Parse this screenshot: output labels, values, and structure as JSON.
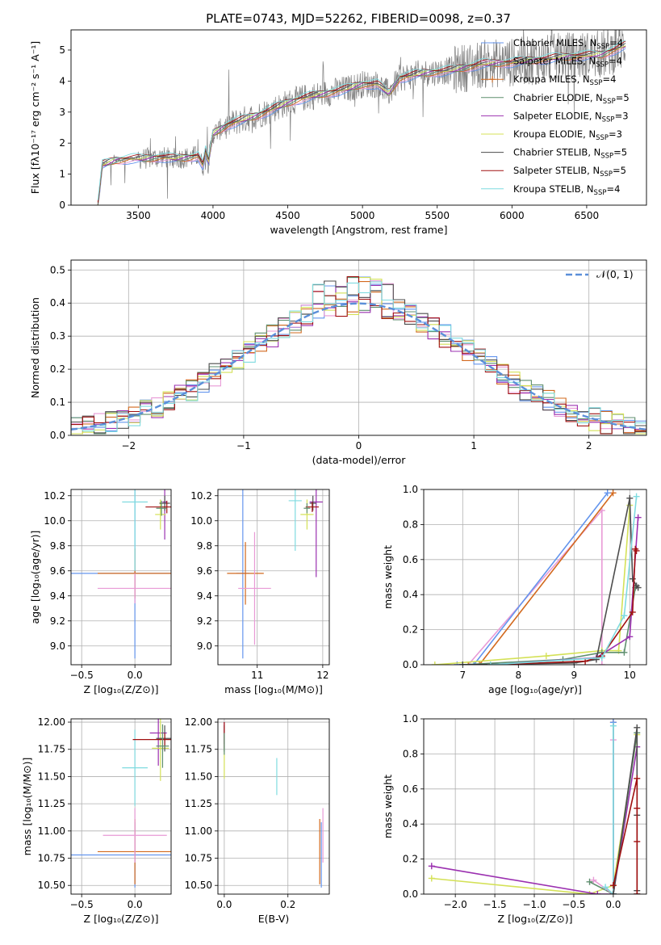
{
  "figure_title": "PLATE=0743, MJD=52262, FIBERID=0098, z=0.37",
  "palette": {
    "Chabrier MILES": "#6495ed",
    "Salpeter MILES": "#e89ad6",
    "Kroupa MILES": "#d2691e",
    "Chabrier ELODIE": "#5f8f6f",
    "Salpeter ELODIE": "#9b30b0",
    "Kroupa ELODIE": "#d4e157",
    "Chabrier STELIB": "#4d4d4d",
    "Salpeter STELIB": "#a01010",
    "Kroupa STELIB": "#7fdbe0",
    "data": "#808080",
    "normal": "#5b8fd9"
  },
  "chart_data": [
    {
      "id": "spectrum",
      "type": "line",
      "xlabel": "wavelength [Angstrom, rest frame]",
      "ylabel": "Flux [fλ10⁻¹⁷ erg cm⁻² s⁻¹ A⁻¹]",
      "xlim": [
        3050,
        6900
      ],
      "ylim": [
        0,
        5.65
      ],
      "xticks": [
        3500,
        4000,
        4500,
        5000,
        5500,
        6000,
        6500
      ],
      "yticks": [
        0,
        1,
        2,
        3,
        4,
        5
      ],
      "grid": false,
      "legend_position": "top-right",
      "legend": [
        {
          "name": "Chabrier MILES",
          "nssp": "4"
        },
        {
          "name": "Salpeter MILES",
          "nssp": "4"
        },
        {
          "name": "Kroupa MILES",
          "nssp": "4"
        },
        {
          "name": "Chabrier ELODIE",
          "nssp": "5"
        },
        {
          "name": "Salpeter ELODIE",
          "nssp": "3"
        },
        {
          "name": "Kroupa ELODIE",
          "nssp": "3"
        },
        {
          "name": "Chabrier STELIB",
          "nssp": "5"
        },
        {
          "name": "Salpeter STELIB",
          "nssp": "5"
        },
        {
          "name": "Kroupa STELIB",
          "nssp": "4"
        }
      ],
      "model_continuum": {
        "x": [
          3230,
          3260,
          3350,
          3450,
          3550,
          3650,
          3750,
          3850,
          3900,
          3934,
          3950,
          3968,
          4000,
          4100,
          4200,
          4300,
          4400,
          4500,
          4600,
          4700,
          4800,
          4900,
          5000,
          5100,
          5175,
          5250,
          5400,
          5600,
          5800,
          6000,
          6200,
          6400,
          6600,
          6760
        ],
        "y": [
          0.0,
          1.3,
          1.45,
          1.5,
          1.5,
          1.55,
          1.5,
          1.55,
          1.6,
          1.25,
          1.75,
          1.35,
          2.3,
          2.6,
          2.75,
          2.9,
          3.1,
          3.3,
          3.45,
          3.55,
          3.65,
          3.75,
          3.9,
          3.9,
          3.6,
          4.1,
          4.25,
          4.35,
          4.55,
          4.6,
          4.7,
          4.8,
          4.85,
          5.15
        ]
      }
    },
    {
      "id": "residuals",
      "type": "histogram",
      "xlabel": "(data-model)/error",
      "ylabel": "Normed distribution",
      "xlim": [
        -2.5,
        2.5
      ],
      "ylim": [
        0,
        0.53
      ],
      "xticks": [
        -2,
        -1,
        0,
        1,
        2
      ],
      "yticks": [
        0.0,
        0.1,
        0.2,
        0.3,
        0.4,
        0.5
      ],
      "grid": true,
      "legend_position": "top-right",
      "legend": [
        "𝒩(0, 1)"
      ],
      "bin_width": 0.1,
      "peaks": [
        0.43,
        0.46,
        0.45,
        0.42,
        0.5,
        0.44,
        0.46,
        0.48,
        0.47
      ]
    },
    {
      "id": "age_vs_Z",
      "type": "scatter",
      "xlabel": "Z [log₁₀(Z/Z⊙)]",
      "ylabel": "age  [log₁₀(age/yr)]",
      "xlim": [
        -0.6,
        0.34
      ],
      "ylim": [
        8.85,
        10.25
      ],
      "xticks": [
        -0.5,
        0.0,
        0.5
      ],
      "yticks": [
        9.0,
        9.2,
        9.4,
        9.6,
        9.8,
        10.0,
        10.2
      ],
      "grid": true,
      "points": [
        {
          "s": "Chabrier MILES",
          "x": 0.0,
          "y": 9.58,
          "xe": 0.6,
          "ye": 0.68
        },
        {
          "s": "Kroupa MILES",
          "x": 0.0,
          "y": 9.58,
          "xe": 0.35,
          "ye": 0.2
        },
        {
          "s": "Salpeter MILES",
          "x": 0.0,
          "y": 9.46,
          "xe": 0.35,
          "ye": 0.12
        },
        {
          "s": "Kroupa STELIB",
          "x": 0.0,
          "y": 10.15,
          "xe": 0.12,
          "ye": 0.55
        },
        {
          "s": "Salpeter ELODIE",
          "x": 0.28,
          "y": 10.15,
          "xe": 0.02,
          "ye": 0.3
        },
        {
          "s": "Kroupa ELODIE",
          "x": 0.24,
          "y": 10.05,
          "xe": 0.05,
          "ye": 0.12
        },
        {
          "s": "Chabrier STELIB",
          "x": 0.28,
          "y": 10.14,
          "xe": 0.05,
          "ye": 0.06
        },
        {
          "s": "Salpeter STELIB",
          "x": 0.3,
          "y": 10.11,
          "xe": 0.2,
          "ye": 0.05
        },
        {
          "s": "Chabrier ELODIE",
          "x": 0.25,
          "y": 10.1,
          "xe": 0.05,
          "ye": 0.06
        }
      ]
    },
    {
      "id": "age_vs_mass",
      "type": "scatter",
      "xlabel": "mass [log₁₀(M/M⊙)]",
      "ylabel": "",
      "xlim": [
        10.4,
        12.1
      ],
      "ylim": [
        8.85,
        10.25
      ],
      "xticks": [
        11,
        12
      ],
      "yticks": [
        9.0,
        9.2,
        9.4,
        9.6,
        9.8,
        10.0,
        10.2
      ],
      "grid": true,
      "points": [
        {
          "s": "Chabrier MILES",
          "x": 10.78,
          "y": 9.58,
          "xe": 0.1,
          "ye": 0.68
        },
        {
          "s": "Kroupa MILES",
          "x": 10.82,
          "y": 9.58,
          "xe": 0.28,
          "ye": 0.25
        },
        {
          "s": "Salpeter MILES",
          "x": 10.96,
          "y": 9.46,
          "xe": 0.25,
          "ye": 0.45
        },
        {
          "s": "Kroupa STELIB",
          "x": 11.58,
          "y": 10.16,
          "xe": 0.1,
          "ye": 0.4
        },
        {
          "s": "Salpeter ELODIE",
          "x": 11.9,
          "y": 10.15,
          "xe": 0.1,
          "ye": 0.6
        },
        {
          "s": "Kroupa ELODIE",
          "x": 11.76,
          "y": 10.05,
          "xe": 0.1,
          "ye": 0.12
        },
        {
          "s": "Chabrier STELIB",
          "x": 11.85,
          "y": 10.14,
          "xe": 0.05,
          "ye": 0.06
        },
        {
          "s": "Salpeter STELIB",
          "x": 11.84,
          "y": 10.11,
          "xe": 0.1,
          "ye": 0.04
        },
        {
          "s": "Chabrier ELODIE",
          "x": 11.76,
          "y": 10.1,
          "xe": 0.05,
          "ye": 0.04
        }
      ]
    },
    {
      "id": "weight_vs_age",
      "type": "line",
      "xlabel": "age  [log₁₀(age/yr)]",
      "ylabel": "mass weight",
      "xlim": [
        6.3,
        10.3
      ],
      "ylim": [
        0,
        1.0
      ],
      "xticks": [
        7,
        8,
        9,
        10
      ],
      "yticks": [
        0.0,
        0.2,
        0.4,
        0.6,
        0.8,
        1.0
      ],
      "grid": true,
      "series": [
        {
          "s": "Salpeter MILES",
          "x": [
            6.9,
            7.1,
            9.5,
            9.5
          ],
          "y": [
            0.0,
            0.0,
            0.88,
            0.0
          ]
        },
        {
          "s": "Kroupa MILES",
          "x": [
            7.1,
            7.3,
            9.7
          ],
          "y": [
            0.0,
            0.0,
            0.98
          ]
        },
        {
          "s": "Chabrier MILES",
          "x": [
            6.9,
            7.2,
            9.6
          ],
          "y": [
            0.0,
            0.0,
            0.98
          ]
        },
        {
          "s": "Kroupa ELODIE",
          "x": [
            6.5,
            8.5,
            9.5,
            9.8,
            10.0
          ],
          "y": [
            0.0,
            0.05,
            0.08,
            0.08,
            0.91
          ]
        },
        {
          "s": "Chabrier ELODIE",
          "x": [
            7.0,
            8.8,
            9.5,
            9.9,
            10.1
          ],
          "y": [
            0.0,
            0.03,
            0.07,
            0.07,
            0.44
          ]
        },
        {
          "s": "Salpeter ELODIE",
          "x": [
            7.5,
            9.4,
            10.0,
            10.15
          ],
          "y": [
            0.0,
            0.04,
            0.16,
            0.84
          ]
        },
        {
          "s": "Chabrier STELIB",
          "x": [
            7.0,
            9.0,
            9.4,
            10.0,
            10.05,
            10.12,
            10.15
          ],
          "y": [
            0.0,
            0.01,
            0.03,
            0.95,
            0.49,
            0.45,
            0.44
          ]
        },
        {
          "s": "Salpeter STELIB",
          "x": [
            7.5,
            9.2,
            9.5,
            10.05,
            10.1,
            10.12
          ],
          "y": [
            0.0,
            0.02,
            0.05,
            0.3,
            0.66,
            0.65
          ]
        },
        {
          "s": "Kroupa STELIB",
          "x": [
            7.5,
            9.5,
            9.9,
            10.12
          ],
          "y": [
            0.0,
            0.04,
            0.28,
            0.96
          ]
        }
      ]
    },
    {
      "id": "mass_vs_Z",
      "type": "scatter",
      "xlabel": "Z [log₁₀(Z/Z⊙)]",
      "ylabel": "mass [log₁₀(M/M⊙)]",
      "xlim": [
        -0.6,
        0.34
      ],
      "ylim": [
        10.42,
        12.03
      ],
      "xticks": [
        -0.5,
        0.0,
        0.5
      ],
      "yticks": [
        10.5,
        10.75,
        11.0,
        11.25,
        11.5,
        11.75,
        12.0
      ],
      "grid": true,
      "points": [
        {
          "s": "Chabrier MILES",
          "x": 0.0,
          "y": 10.78,
          "xe": 0.6,
          "ye": 0.3
        },
        {
          "s": "Kroupa MILES",
          "x": 0.0,
          "y": 10.81,
          "xe": 0.35,
          "ye": 0.3
        },
        {
          "s": "Salpeter MILES",
          "x": 0.0,
          "y": 10.96,
          "xe": 0.3,
          "ye": 0.25
        },
        {
          "s": "Kroupa STELIB",
          "x": 0.0,
          "y": 11.58,
          "xe": 0.12,
          "ye": 0.35
        },
        {
          "s": "Salpeter ELODIE",
          "x": 0.22,
          "y": 11.9,
          "xe": 0.08,
          "ye": 0.3
        },
        {
          "s": "Kroupa ELODIE",
          "x": 0.24,
          "y": 11.76,
          "xe": 0.08,
          "ye": 0.3
        },
        {
          "s": "Chabrier STELIB",
          "x": 0.28,
          "y": 11.85,
          "xe": 0.08,
          "ye": 0.12
        },
        {
          "s": "Salpeter STELIB",
          "x": 0.28,
          "y": 11.84,
          "xe": 0.3,
          "ye": 0.06
        },
        {
          "s": "Chabrier ELODIE",
          "x": 0.26,
          "y": 11.78,
          "xe": 0.06,
          "ye": 0.2
        }
      ]
    },
    {
      "id": "mass_vs_ebv",
      "type": "scatter",
      "xlabel": "E(B-V)",
      "ylabel": "",
      "xlim": [
        -0.02,
        0.33
      ],
      "ylim": [
        10.42,
        12.03
      ],
      "xticks": [
        0.0,
        0.2
      ],
      "yticks": [
        10.5,
        10.75,
        11.0,
        11.25,
        11.5,
        11.75,
        12.0
      ],
      "grid": true,
      "points": [
        {
          "s": "Chabrier MILES",
          "x": 0.305,
          "y": 10.78,
          "xe": 0.0,
          "ye": 0.3
        },
        {
          "s": "Kroupa MILES",
          "x": 0.3,
          "y": 10.81,
          "xe": 0.0,
          "ye": 0.3
        },
        {
          "s": "Salpeter MILES",
          "x": 0.31,
          "y": 10.96,
          "xe": 0.0,
          "ye": 0.25
        },
        {
          "s": "Kroupa STELIB",
          "x": 0.165,
          "y": 11.5,
          "xe": 0.0,
          "ye": 0.17
        },
        {
          "s": "Salpeter ELODIE",
          "x": 0.0,
          "y": 11.9,
          "xe": 0.0,
          "ye": 0.1
        },
        {
          "s": "Kroupa ELODIE",
          "x": 0.0,
          "y": 11.62,
          "xe": 0.0,
          "ye": 0.14
        },
        {
          "s": "Chabrier STELIB",
          "x": 0.0,
          "y": 11.85,
          "xe": 0.0,
          "ye": 0.12
        },
        {
          "s": "Salpeter STELIB",
          "x": 0.0,
          "y": 11.88,
          "xe": 0.0,
          "ye": 0.12
        },
        {
          "s": "Chabrier ELODIE",
          "x": 0.0,
          "y": 11.8,
          "xe": 0.0,
          "ye": 0.1
        }
      ]
    },
    {
      "id": "weight_vs_Z",
      "type": "line",
      "xlabel": "Z [log₁₀(Z/Z⊙)]",
      "ylabel": "mass weight",
      "xlim": [
        -2.4,
        0.42
      ],
      "ylim": [
        0,
        1.0
      ],
      "xticks": [
        -2.0,
        -1.5,
        -1.0,
        -0.5,
        0.0
      ],
      "yticks": [
        0.0,
        0.2,
        0.4,
        0.6,
        0.8,
        1.0
      ],
      "grid": true,
      "series": [
        {
          "s": "Kroupa ELODIE",
          "x": [
            -2.3,
            -0.3,
            0.0,
            0.3
          ],
          "y": [
            0.09,
            0.0,
            0.05,
            0.91
          ]
        },
        {
          "s": "Salpeter ELODIE",
          "x": [
            -2.3,
            -0.2,
            0.0,
            0.3
          ],
          "y": [
            0.16,
            0.0,
            0.0,
            0.84
          ]
        },
        {
          "s": "Chabrier ELODIE",
          "x": [
            -0.3,
            0.0,
            0.3
          ],
          "y": [
            0.07,
            0.0,
            0.92
          ]
        },
        {
          "s": "Salpeter MILES",
          "x": [
            -0.25,
            0.0,
            0.0
          ],
          "y": [
            0.08,
            0.0,
            0.88
          ]
        },
        {
          "s": "Kroupa MILES",
          "x": [
            0.0,
            0.0
          ],
          "y": [
            0.0,
            0.98
          ]
        },
        {
          "s": "Chabrier MILES",
          "x": [
            0.0,
            0.0
          ],
          "y": [
            0.0,
            0.98
          ]
        },
        {
          "s": "Kroupa STELIB",
          "x": [
            -0.1,
            0.0,
            0.0
          ],
          "y": [
            0.04,
            0.0,
            0.96
          ]
        },
        {
          "s": "Chabrier STELIB",
          "x": [
            0.0,
            0.3,
            0.3,
            0.3,
            0.3
          ],
          "y": [
            0.0,
            0.95,
            0.45,
            0.02,
            0.0
          ]
        },
        {
          "s": "Salpeter STELIB",
          "x": [
            0.0,
            0.3,
            0.3,
            0.3,
            0.3
          ],
          "y": [
            0.05,
            0.66,
            0.49,
            0.3,
            0.0
          ]
        }
      ]
    }
  ]
}
